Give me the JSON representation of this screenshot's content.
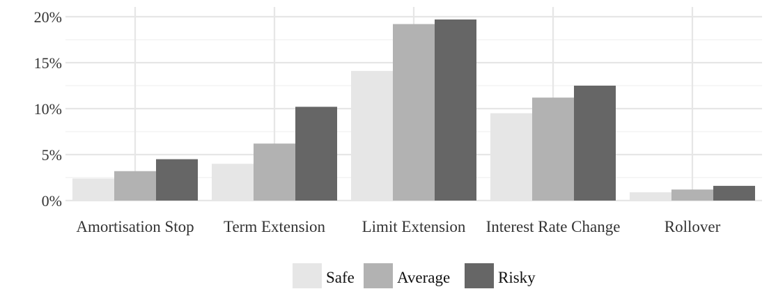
{
  "chart_data": {
    "type": "bar",
    "categories": [
      "Amortisation Stop",
      "Term Extension",
      "Limit Extension",
      "Interest Rate Change",
      "Rollover"
    ],
    "series": [
      {
        "name": "Safe",
        "values": [
          2.4,
          4.0,
          14.1,
          9.5,
          0.9
        ],
        "color": "#e6e6e6"
      },
      {
        "name": "Average",
        "values": [
          3.2,
          6.2,
          19.2,
          11.2,
          1.2
        ],
        "color": "#b2b2b2"
      },
      {
        "name": "Risky",
        "values": [
          4.5,
          10.2,
          19.7,
          12.5,
          1.6
        ],
        "color": "#666666"
      }
    ],
    "y_ticks": [
      0,
      5,
      10,
      15,
      20
    ],
    "y_tick_labels": [
      "0%",
      "5%",
      "10%",
      "15%",
      "20%"
    ],
    "ylim": [
      0,
      20.5
    ],
    "xlabel": "",
    "ylabel": "",
    "title": "",
    "grid": true,
    "legend_position": "bottom"
  }
}
